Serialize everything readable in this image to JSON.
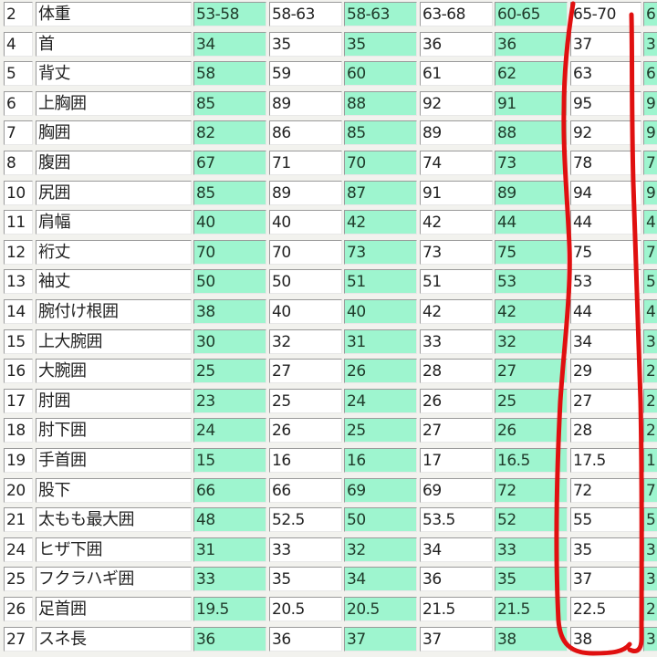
{
  "colors": {
    "highlight_fill": "#9ef5cf",
    "annotation": "#e01010"
  },
  "column_highlight": [
    true,
    false,
    true,
    false,
    true,
    false,
    true
  ],
  "rows": [
    {
      "num": "2",
      "name": "体重",
      "values": [
        "53-58",
        "58-63",
        "58-63",
        "63-68",
        "60-65",
        "65-70",
        "6"
      ]
    },
    {
      "num": "4",
      "name": "首",
      "values": [
        "34",
        "35",
        "35",
        "36",
        "36",
        "37",
        "3"
      ]
    },
    {
      "num": "5",
      "name": "背丈",
      "values": [
        "58",
        "59",
        "60",
        "61",
        "62",
        "63",
        "6"
      ]
    },
    {
      "num": "6",
      "name": "上胸囲",
      "values": [
        "85",
        "89",
        "88",
        "92",
        "91",
        "95",
        "9"
      ]
    },
    {
      "num": "7",
      "name": "胸囲",
      "values": [
        "82",
        "86",
        "85",
        "89",
        "88",
        "92",
        "9"
      ]
    },
    {
      "num": "8",
      "name": "腹囲",
      "values": [
        "67",
        "71",
        "70",
        "74",
        "73",
        "78",
        "7"
      ]
    },
    {
      "num": "10",
      "name": "尻囲",
      "values": [
        "85",
        "89",
        "87",
        "91",
        "89",
        "94",
        "9"
      ]
    },
    {
      "num": "11",
      "name": "肩幅",
      "values": [
        "40",
        "40",
        "42",
        "42",
        "44",
        "44",
        "4"
      ]
    },
    {
      "num": "12",
      "name": "裄丈",
      "values": [
        "70",
        "70",
        "73",
        "73",
        "75",
        "75",
        "7"
      ]
    },
    {
      "num": "13",
      "name": "袖丈",
      "values": [
        "50",
        "50",
        "51",
        "51",
        "53",
        "53",
        "5"
      ]
    },
    {
      "num": "14",
      "name": "腕付け根囲",
      "values": [
        "38",
        "40",
        "40",
        "42",
        "42",
        "44",
        "4"
      ]
    },
    {
      "num": "15",
      "name": "上大腕囲",
      "values": [
        "30",
        "32",
        "31",
        "33",
        "32",
        "34",
        "3"
      ]
    },
    {
      "num": "16",
      "name": "大腕囲",
      "values": [
        "25",
        "27",
        "26",
        "28",
        "27",
        "29",
        "2"
      ]
    },
    {
      "num": "17",
      "name": "肘囲",
      "values": [
        "23",
        "25",
        "24",
        "26",
        "25",
        "27",
        "2"
      ]
    },
    {
      "num": "18",
      "name": "肘下囲",
      "values": [
        "24",
        "26",
        "25",
        "27",
        "26",
        "28",
        "2"
      ]
    },
    {
      "num": "19",
      "name": "手首囲",
      "values": [
        "15",
        "16",
        "16",
        "17",
        "16.5",
        "17.5",
        "1"
      ]
    },
    {
      "num": "20",
      "name": "股下",
      "values": [
        "66",
        "66",
        "69",
        "69",
        "72",
        "72",
        "7"
      ]
    },
    {
      "num": "21",
      "name": "太もも最大囲",
      "values": [
        "48",
        "52.5",
        "50",
        "53.5",
        "52",
        "55",
        "5"
      ]
    },
    {
      "num": "24",
      "name": "ヒザ下囲",
      "values": [
        "31",
        "33",
        "32",
        "34",
        "33",
        "35",
        "3"
      ]
    },
    {
      "num": "25",
      "name": "フクラハギ囲",
      "values": [
        "33",
        "35",
        "34",
        "36",
        "35",
        "37",
        "3"
      ]
    },
    {
      "num": "26",
      "name": "足首囲",
      "values": [
        "19.5",
        "20.5",
        "20.5",
        "21.5",
        "21.5",
        "22.5",
        "2"
      ]
    },
    {
      "num": "27",
      "name": "スネ長",
      "values": [
        "36",
        "36",
        "37",
        "37",
        "38",
        "38",
        "3"
      ]
    }
  ]
}
